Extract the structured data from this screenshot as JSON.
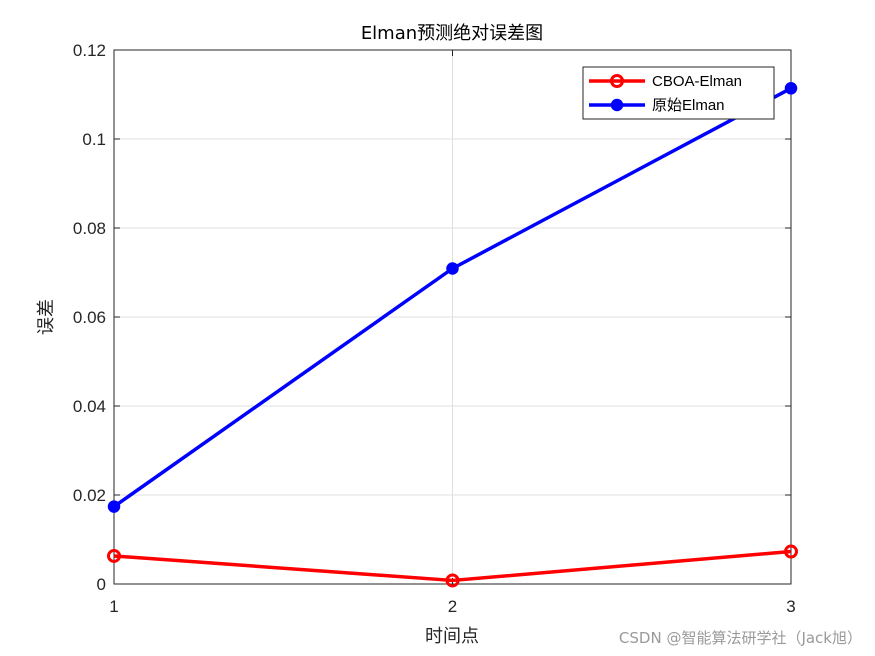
{
  "chart_data": {
    "type": "line",
    "title": "Elman预测绝对误差图",
    "xlabel": "时间点",
    "ylabel": "误差",
    "x": [
      1,
      2,
      3
    ],
    "xticks": [
      "1",
      "2",
      "3"
    ],
    "yticks": [
      "0",
      "0.02",
      "0.04",
      "0.06",
      "0.08",
      "0.1",
      "0.12"
    ],
    "xlim": [
      1,
      3
    ],
    "ylim": [
      0,
      0.12
    ],
    "grid": true,
    "legend_position": "top-right",
    "series": [
      {
        "name": "CBOA-Elman",
        "values": [
          0.0063,
          0.0008,
          0.0073
        ],
        "color": "#ff0000",
        "marker": "open-circle"
      },
      {
        "name": "原始Elman",
        "values": [
          0.0174,
          0.0709,
          0.1114
        ],
        "color": "#0000ff",
        "marker": "filled-circle"
      }
    ]
  },
  "watermark": "CSDN @智能算法研学社（Jack旭）"
}
